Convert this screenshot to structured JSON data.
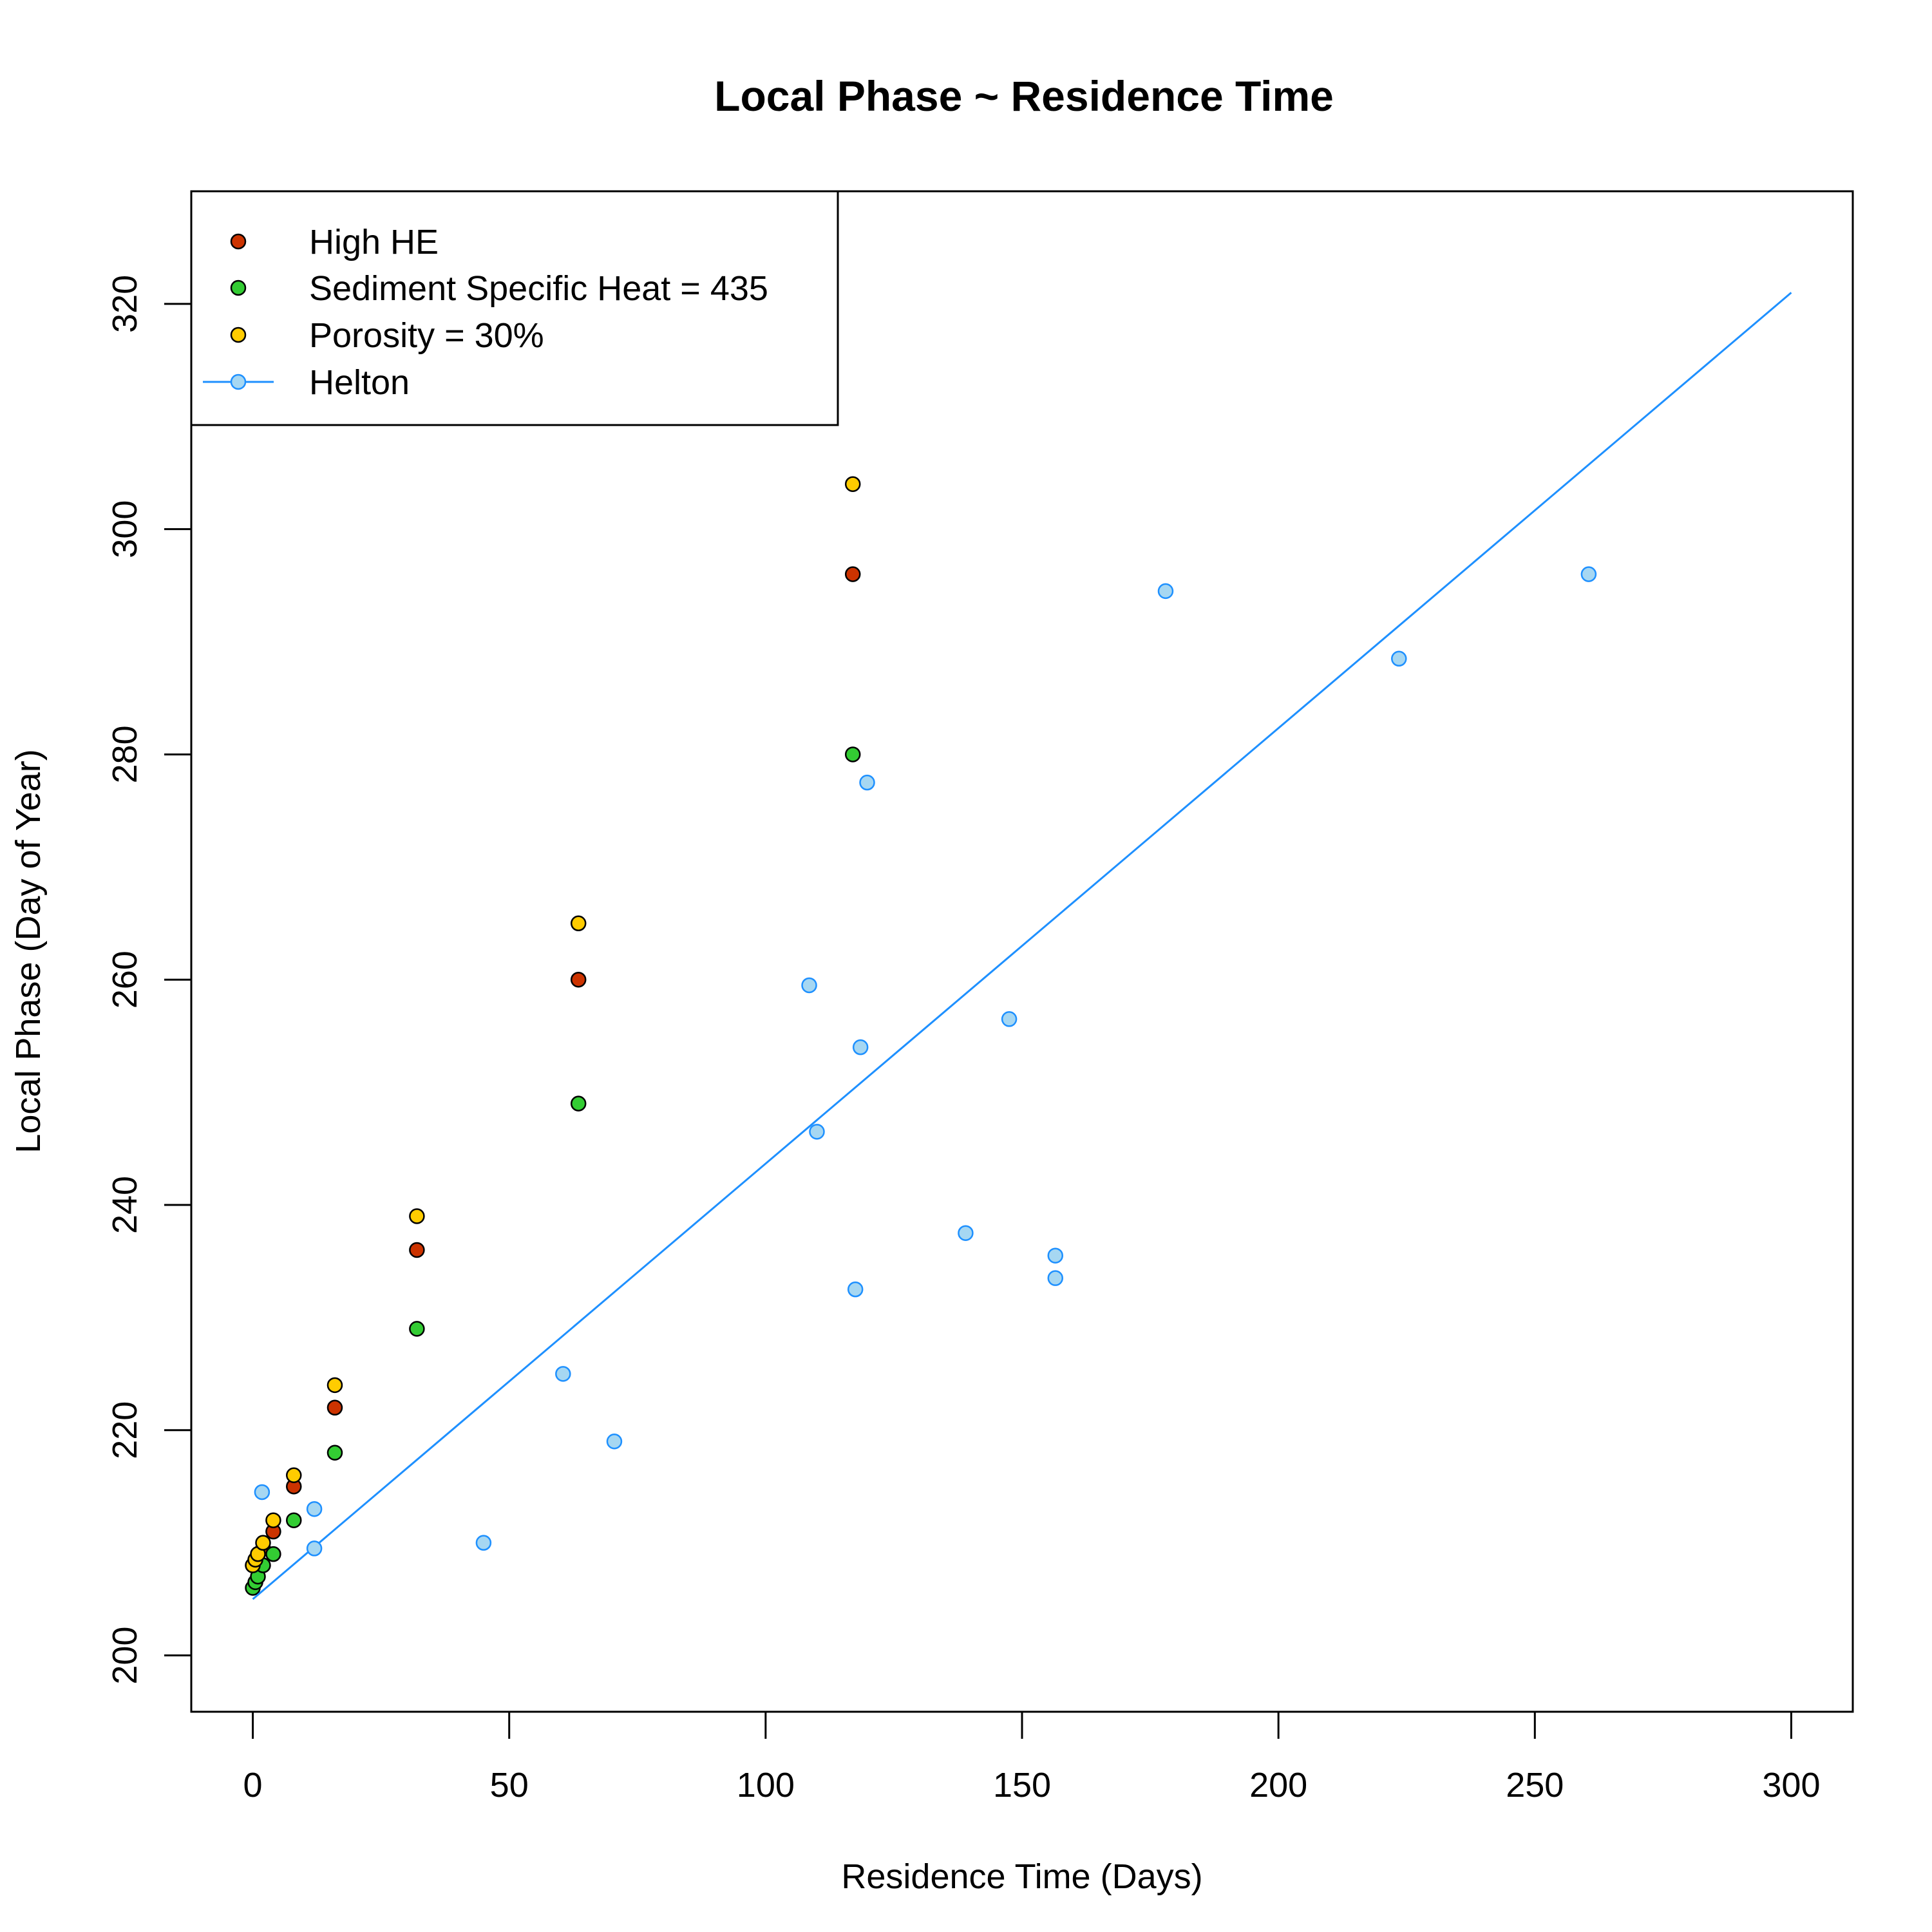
{
  "chart_data": {
    "type": "scatter",
    "title": "Local Phase ~ Residence Time",
    "xlabel": "Residence Time (Days)",
    "ylabel": "Local Phase (Day of Year)",
    "xlim": [
      -12,
      312
    ],
    "ylim": [
      195,
      330
    ],
    "xticks": [
      0,
      50,
      100,
      150,
      200,
      250,
      300
    ],
    "yticks": [
      200,
      220,
      240,
      260,
      280,
      300,
      320
    ],
    "grid": false,
    "legend_position": "top-left",
    "series": [
      {
        "name": "High HE",
        "kind": "points",
        "color": "#CC3300",
        "x": [
          0,
          0.5,
          1,
          2,
          4,
          8,
          16,
          32,
          63.5,
          117
        ],
        "y": [
          208,
          208.5,
          209,
          209.5,
          211,
          215,
          222,
          236,
          260,
          296
        ]
      },
      {
        "name": "Sediment Specific Heat = 435",
        "kind": "points",
        "color": "#33CC33",
        "x": [
          0,
          0.5,
          1,
          2,
          4,
          8,
          16,
          32,
          63.5,
          117
        ],
        "y": [
          206,
          206.5,
          207,
          208,
          209,
          212,
          218,
          229,
          249,
          280
        ]
      },
      {
        "name": "Porosity = 30%",
        "kind": "points",
        "color": "#FFCC00",
        "x": [
          0,
          0.5,
          1,
          2,
          4,
          8,
          16,
          32,
          63.5,
          117
        ],
        "y": [
          208,
          208.5,
          209,
          210,
          212,
          216,
          224,
          239,
          265,
          304
        ]
      },
      {
        "name": "Helton",
        "kind": "points+line",
        "color": "#1E90FF",
        "point_fill": "#A6D7F2",
        "x": [
          1.8,
          12,
          12,
          45,
          60.5,
          70.5,
          108.5,
          110,
          117.5,
          118.5,
          119.8,
          139,
          147.5,
          156.5,
          156.5,
          178,
          223.5,
          260.5
        ],
        "y": [
          214.5,
          213,
          209.5,
          210,
          225,
          219,
          259.5,
          246.5,
          232.5,
          254,
          277.5,
          237.5,
          256.5,
          235.5,
          233.5,
          294.5,
          288.5,
          296
        ],
        "line_x": [
          0,
          300
        ],
        "line_y": [
          205,
          321
        ]
      }
    ]
  }
}
